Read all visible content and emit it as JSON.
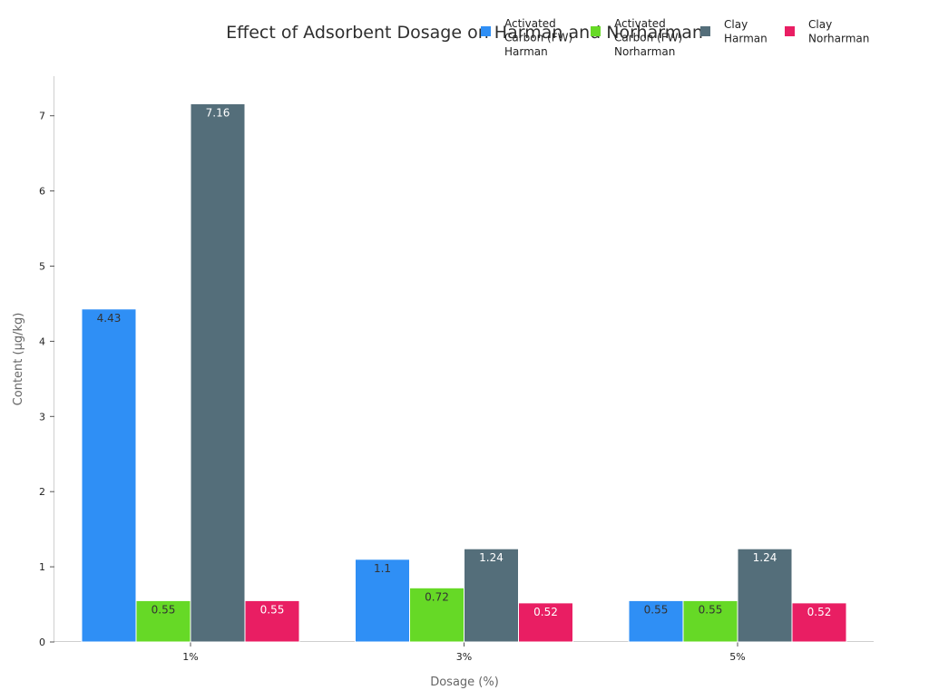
{
  "chart_data": {
    "type": "bar",
    "title": "Effect of Adsorbent Dosage on Harman and Norharman",
    "xlabel": "Dosage (%)",
    "ylabel": "Content (μg/kg)",
    "categories": [
      "1%",
      "3%",
      "5%"
    ],
    "ylim": [
      0,
      7.5
    ],
    "yticks": [
      0,
      1,
      2,
      3,
      4,
      5,
      6,
      7
    ],
    "grid": false,
    "legend_position": "top-right",
    "series": [
      {
        "name": "Activated Carbon (FW) Harman",
        "legend_lines": [
          "Activated",
          "Carbon (FW)",
          "Harman"
        ],
        "color": "#2f8ff5",
        "label_color": "#333333",
        "values": [
          4.43,
          1.1,
          0.55
        ]
      },
      {
        "name": "Activated Carbon (FW) Norharman",
        "legend_lines": [
          "Activated",
          "Carbon (FW)",
          "Norharman"
        ],
        "color": "#66d926",
        "label_color": "#333333",
        "values": [
          0.55,
          0.72,
          0.55
        ]
      },
      {
        "name": "Clay Harman",
        "legend_lines": [
          "Clay",
          "Harman"
        ],
        "color": "#546e7a",
        "label_color": "#ffffff",
        "values": [
          7.16,
          1.24,
          1.24
        ]
      },
      {
        "name": "Clay Norharman",
        "legend_lines": [
          "Clay",
          "Norharman"
        ],
        "color": "#e91e63",
        "label_color": "#ffffff",
        "values": [
          0.55,
          0.52,
          0.52
        ]
      }
    ]
  }
}
